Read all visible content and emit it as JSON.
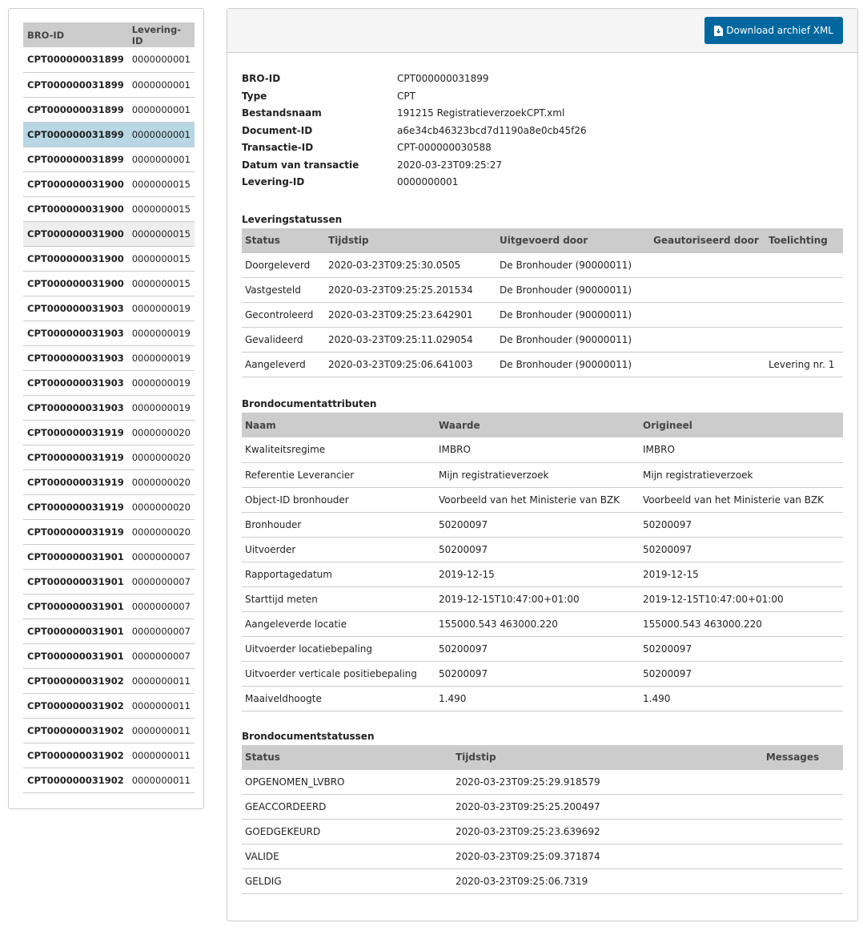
{
  "list": {
    "headers": [
      "BRO-ID",
      "Levering-ID"
    ],
    "rows": [
      [
        "CPT000000031899",
        "0000000001"
      ],
      [
        "CPT000000031899",
        "0000000001"
      ],
      [
        "CPT000000031899",
        "0000000001"
      ],
      [
        "CPT000000031899",
        "0000000001"
      ],
      [
        "CPT000000031899",
        "0000000001"
      ],
      [
        "CPT000000031900",
        "0000000015"
      ],
      [
        "CPT000000031900",
        "0000000015"
      ],
      [
        "CPT000000031900",
        "0000000015"
      ],
      [
        "CPT000000031900",
        "0000000015"
      ],
      [
        "CPT000000031900",
        "0000000015"
      ],
      [
        "CPT000000031903",
        "0000000019"
      ],
      [
        "CPT000000031903",
        "0000000019"
      ],
      [
        "CPT000000031903",
        "0000000019"
      ],
      [
        "CPT000000031903",
        "0000000019"
      ],
      [
        "CPT000000031903",
        "0000000019"
      ],
      [
        "CPT000000031919",
        "0000000020"
      ],
      [
        "CPT000000031919",
        "0000000020"
      ],
      [
        "CPT000000031919",
        "0000000020"
      ],
      [
        "CPT000000031919",
        "0000000020"
      ],
      [
        "CPT000000031919",
        "0000000020"
      ],
      [
        "CPT000000031901",
        "0000000007"
      ],
      [
        "CPT000000031901",
        "0000000007"
      ],
      [
        "CPT000000031901",
        "0000000007"
      ],
      [
        "CPT000000031901",
        "0000000007"
      ],
      [
        "CPT000000031901",
        "0000000007"
      ],
      [
        "CPT000000031902",
        "0000000011"
      ],
      [
        "CPT000000031902",
        "0000000011"
      ],
      [
        "CPT000000031902",
        "0000000011"
      ],
      [
        "CPT000000031902",
        "0000000011"
      ],
      [
        "CPT000000031902",
        "0000000011"
      ]
    ],
    "selected_index": 3,
    "hover_index": 7
  },
  "download_label": "Download archief XML",
  "info": [
    [
      "BRO-ID",
      "CPT000000031899"
    ],
    [
      "Type",
      "CPT"
    ],
    [
      "Bestandsnaam",
      "191215 RegistratieverzoekCPT.xml"
    ],
    [
      "Document-ID",
      "a6e34cb46323bcd7d1190a8e0cb45f26"
    ],
    [
      "Transactie-ID",
      "CPT-000000030588"
    ],
    [
      "Datum van transactie",
      "2020-03-23T09:25:27"
    ],
    [
      "Levering-ID",
      "0000000001"
    ]
  ],
  "leveringstatussen": {
    "title": "Leveringstatussen",
    "headers": [
      "Status",
      "Tijdstip",
      "Uitgevoerd door",
      "Geautoriseerd door",
      "Toelichting"
    ],
    "rows": [
      [
        "Doorgeleverd",
        "2020-03-23T09:25:30.0505",
        "De Bronhouder (90000011)",
        "",
        ""
      ],
      [
        "Vastgesteld",
        "2020-03-23T09:25:25.201534",
        "De Bronhouder (90000011)",
        "",
        ""
      ],
      [
        "Gecontroleerd",
        "2020-03-23T09:25:23.642901",
        "De Bronhouder (90000011)",
        "",
        ""
      ],
      [
        "Gevalideerd",
        "2020-03-23T09:25:11.029054",
        "De Bronhouder (90000011)",
        "",
        ""
      ],
      [
        "Aangeleverd",
        "2020-03-23T09:25:06.641003",
        "De Bronhouder (90000011)",
        "",
        "Levering nr. 1"
      ]
    ]
  },
  "attributen": {
    "title": "Brondocumentattributen",
    "headers": [
      "Naam",
      "Waarde",
      "Origineel"
    ],
    "rows": [
      [
        "Kwaliteitsregime",
        "IMBRO",
        "IMBRO"
      ],
      [
        "Referentie Leverancier",
        "Mijn registratieverzoek",
        "Mijn registratieverzoek"
      ],
      [
        "Object-ID bronhouder",
        "Voorbeeld van het Ministerie van BZK",
        "Voorbeeld van het Ministerie van BZK"
      ],
      [
        "Bronhouder",
        "50200097",
        "50200097"
      ],
      [
        "Uitvoerder",
        "50200097",
        "50200097"
      ],
      [
        "Rapportagedatum",
        "2019-12-15",
        "2019-12-15"
      ],
      [
        "Starttijd meten",
        "2019-12-15T10:47:00+01:00",
        "2019-12-15T10:47:00+01:00"
      ],
      [
        "Aangeleverde locatie",
        "155000.543 463000.220",
        "155000.543 463000.220"
      ],
      [
        "Uitvoerder locatiebepaling",
        "50200097",
        "50200097"
      ],
      [
        "Uitvoerder verticale positiebepaling",
        "50200097",
        "50200097"
      ],
      [
        "Maaiveldhoogte",
        "1.490",
        "1.490"
      ]
    ]
  },
  "documentstatussen": {
    "title": "Brondocumentstatussen",
    "headers": [
      "Status",
      "Tijdstip",
      "Messages"
    ],
    "rows": [
      [
        "OPGENOMEN_LVBRO",
        "2020-03-23T09:25:29.918579",
        ""
      ],
      [
        "GEACCORDEERD",
        "2020-03-23T09:25:25.200497",
        ""
      ],
      [
        "GOEDGEKEURD",
        "2020-03-23T09:25:23.639692",
        ""
      ],
      [
        "VALIDE",
        "2020-03-23T09:25:09.371874",
        ""
      ],
      [
        "GELDIG",
        "2020-03-23T09:25:06.7319",
        ""
      ]
    ]
  }
}
